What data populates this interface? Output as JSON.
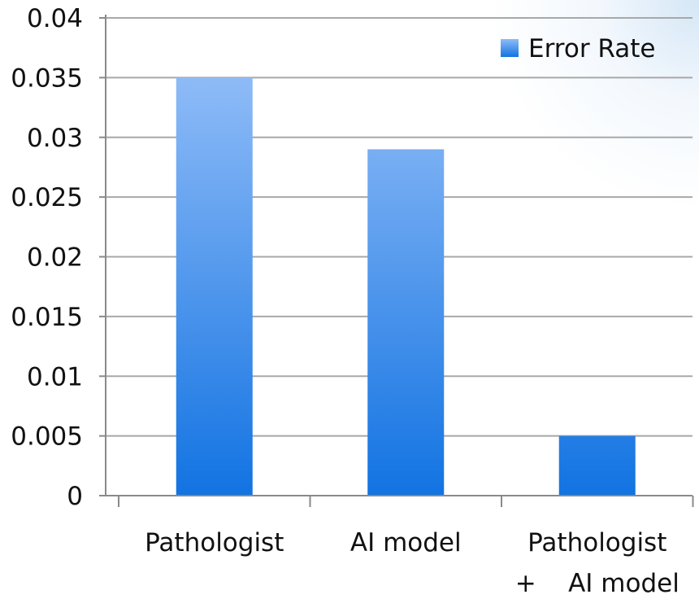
{
  "chart_data": {
    "type": "bar",
    "categories": [
      "Pathologist",
      "AI model",
      "Pathologist\n+    AI model"
    ],
    "category_lines": [
      [
        "Pathologist"
      ],
      [
        "AI model"
      ],
      [
        "Pathologist",
        "+    AI model"
      ]
    ],
    "series": [
      {
        "name": "Error Rate",
        "values": [
          0.035,
          0.029,
          0.005
        ]
      }
    ],
    "yticks": [
      "0",
      "0.005",
      "0.01",
      "0.015",
      "0.02",
      "0.025",
      "0.03",
      "0.035",
      "0.04"
    ],
    "ylim": [
      0,
      0.04
    ],
    "grid": true,
    "legend_position": "top-right",
    "colors": {
      "bar_top": "#8ebbf7",
      "bar_bottom": "#1273e2",
      "gridline": "#a8a8a8",
      "axis": "#8a8a8a"
    }
  }
}
